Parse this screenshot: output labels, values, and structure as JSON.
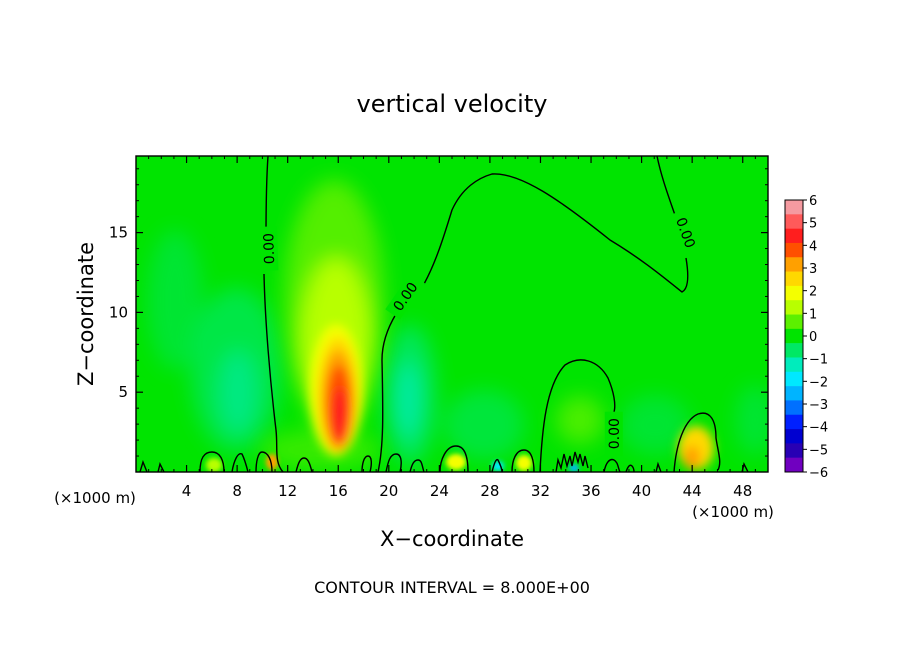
{
  "chart_data": {
    "type": "heatmap",
    "title": "vertical velocity",
    "xlabel": "X−coordinate",
    "ylabel": "Z−coordinate",
    "x_unit": "(×1000 m)",
    "y_unit": "(×1000 m)",
    "footer": "CONTOUR INTERVAL = 8.000E+00",
    "xlim": [
      0,
      50
    ],
    "ylim": [
      0,
      19.8
    ],
    "x_ticks": [
      4,
      8,
      12,
      16,
      20,
      24,
      28,
      32,
      36,
      40,
      44,
      48
    ],
    "y_ticks": [
      5,
      10,
      15
    ],
    "colorbar": {
      "min": -6,
      "max": 6,
      "labels": [
        "6",
        "5",
        "4",
        "3",
        "2",
        "1",
        "0",
        "−1",
        "−2",
        "−3",
        "−4",
        "−5",
        "−6"
      ],
      "colors": [
        "#f59aa0",
        "#ff5a5a",
        "#ff1e1e",
        "#ff5000",
        "#ffa000",
        "#ffd800",
        "#f4ff00",
        "#b8ff00",
        "#5cf000",
        "#00e400",
        "#00e864",
        "#00ecbc",
        "#00e8ff",
        "#00b4ff",
        "#0070ff",
        "#0020ff",
        "#0000d0",
        "#2800b4",
        "#7000c0"
      ]
    },
    "contour_label": "0.00",
    "features": [
      {
        "kind": "updraft",
        "x": 16,
        "z": 3.5,
        "value": 5.5
      },
      {
        "kind": "updraft_weak",
        "x": 43.5,
        "z": 1.0,
        "value": 2
      },
      {
        "kind": "downdraft",
        "x": 21,
        "z": 5,
        "value": -2
      },
      {
        "kind": "downdraft",
        "x": 8,
        "z": 6,
        "value": -1.5
      },
      {
        "kind": "downdraft",
        "x": 30,
        "z": 0.5,
        "value": -2.5
      }
    ]
  }
}
